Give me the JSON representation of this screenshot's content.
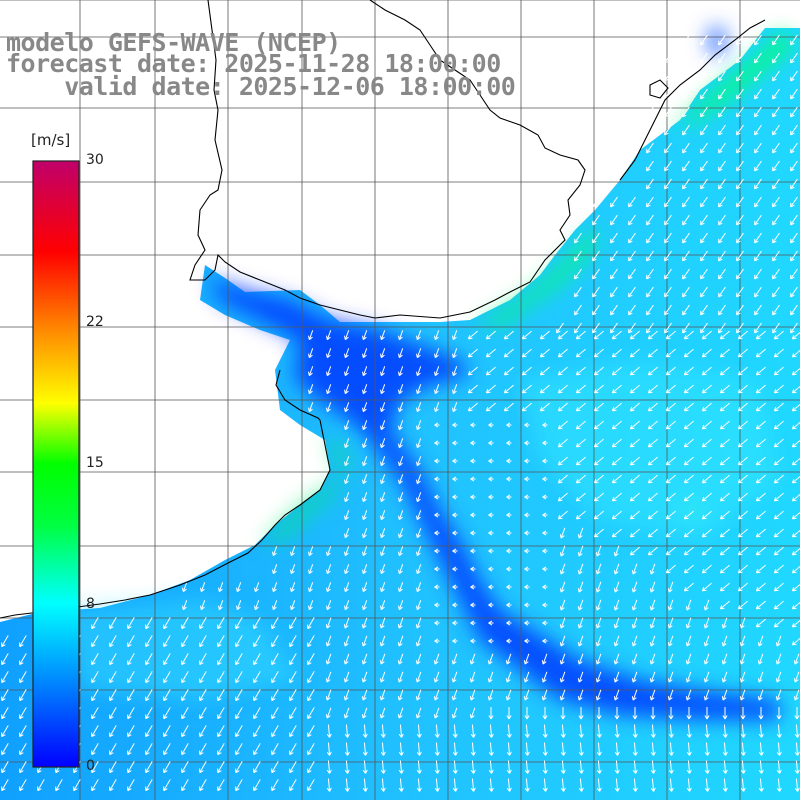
{
  "title": {
    "line1": "modelo GEFS-WAVE (NCEP)",
    "line2": "forecast date: 2025-11-28 18:00:00",
    "line3": "    valid date: 2025-12-06 18:00:00"
  },
  "colorbar": {
    "unit": "[m/s]",
    "ticks": [
      {
        "label": "30",
        "value": 30
      },
      {
        "label": "22",
        "value": 22
      },
      {
        "label": "15",
        "value": 15
      },
      {
        "label": "8",
        "value": 8
      },
      {
        "label": "0",
        "value": 0
      }
    ],
    "colors": [
      "#0000ff",
      "#0090ff",
      "#00ffff",
      "#00ff40",
      "#00ff00",
      "#ffff00",
      "#ff8000",
      "#ff0000",
      "#c0006a"
    ]
  },
  "colors": {
    "land": "#ffffff",
    "coastline": "#000000",
    "grid": "#555555",
    "arrow": "#ffffff",
    "ocean_low": "#0030ff",
    "ocean_mid": "#00b0ff",
    "ocean_high": "#00ff66"
  }
}
